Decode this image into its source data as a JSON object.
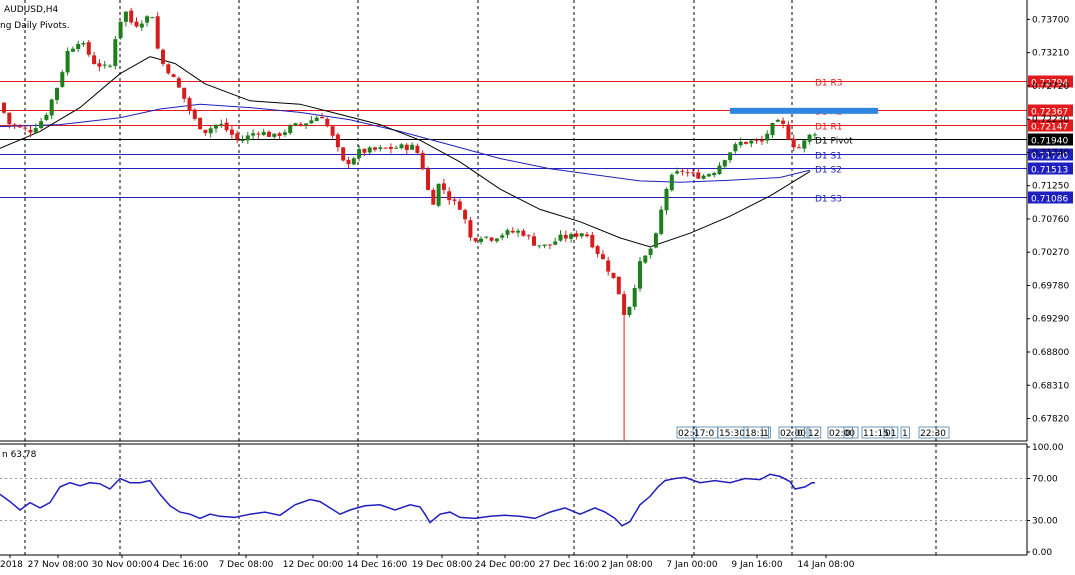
{
  "chart_data": {
    "type": "candlestick",
    "symbol_label": "AUDUSD,H4",
    "indicator_label": "ng Daily Pivots.",
    "price_axis": {
      "ylim": [
        0.67489,
        0.73985
      ],
      "tick_labels": [
        "0.73700",
        "0.73210",
        "0.72720",
        "0.72230",
        "0.71740",
        "0.71250",
        "0.70760",
        "0.70270",
        "0.69780",
        "0.69290",
        "0.68800",
        "0.68310",
        "0.67820"
      ]
    },
    "pivots": [
      {
        "label": "D1 R3",
        "price": "0.72794",
        "value": 0.72794,
        "color": "#e31a1c",
        "label_color": "#e31a1c"
      },
      {
        "label": "D1 R2",
        "price": "0.72367",
        "value": 0.72367,
        "color": "#e31a1c",
        "label_color": "#e31a1c"
      },
      {
        "label": "D1 R1",
        "price": "0.72147",
        "value": 0.72147,
        "color": "#e31a1c",
        "label_color": "#e31a1c"
      },
      {
        "label": "D1 Pivot",
        "price": "0.71940",
        "value": 0.7194,
        "color": "#000000",
        "label_color": "#000000"
      },
      {
        "label": "D1 S1",
        "price": "0.71720",
        "value": 0.7172,
        "color": "#1f1fbf",
        "label_color": "#1f1fbf"
      },
      {
        "label": "D1 S2",
        "price": "0.71513",
        "value": 0.71513,
        "color": "#1f1fbf",
        "label_color": "#1f1fbf"
      },
      {
        "label": "D1 S3",
        "price": "0.71086",
        "value": 0.71086,
        "color": "#1f1fbf",
        "label_color": "#1f1fbf"
      }
    ],
    "x_labels": [
      "2018",
      "27 Nov 08:00",
      "30 Nov 00:00",
      "4 Dec 16:00",
      "7 Dec 08:00",
      "12 Dec 00:00",
      "14 Dec 16:00",
      "19 Dec 08:00",
      "24 Dec 00:00",
      "27 Dec 16:00",
      "2 Jan 08:00",
      "7 Jan 00:00",
      "9 Jan 16:00",
      "14 Jan 08:00"
    ],
    "session_labels": [
      "02:",
      "17:0",
      "15:30",
      "18:1",
      "1",
      "02:00",
      "0",
      "12",
      "02:00",
      "0",
      "11:15",
      "01",
      "1",
      "22:30"
    ],
    "colors": {
      "bull": "#1e7e1e",
      "bear": "#d41e1e",
      "ma_black": "#000000",
      "ma_blue": "#1f1fbf",
      "rsi": "#1f1fbf",
      "highlight": "#2f86e0"
    },
    "price_anchors": [
      [
        0,
        0.7247
      ],
      [
        10,
        0.7216
      ],
      [
        30,
        0.7205
      ],
      [
        45,
        0.7225
      ],
      [
        60,
        0.7279
      ],
      [
        68,
        0.7322
      ],
      [
        80,
        0.734
      ],
      [
        95,
        0.7306
      ],
      [
        110,
        0.7296
      ],
      [
        118,
        0.736
      ],
      [
        126,
        0.7382
      ],
      [
        134,
        0.736
      ],
      [
        144,
        0.737
      ],
      [
        153,
        0.7377
      ],
      [
        160,
        0.7311
      ],
      [
        170,
        0.7293
      ],
      [
        182,
        0.7262
      ],
      [
        195,
        0.7222
      ],
      [
        205,
        0.7205
      ],
      [
        220,
        0.7217
      ],
      [
        240,
        0.719
      ],
      [
        258,
        0.7206
      ],
      [
        275,
        0.7197
      ],
      [
        292,
        0.7211
      ],
      [
        310,
        0.722
      ],
      [
        322,
        0.723
      ],
      [
        334,
        0.7194
      ],
      [
        345,
        0.7155
      ],
      [
        360,
        0.7175
      ],
      [
        380,
        0.7178
      ],
      [
        400,
        0.7182
      ],
      [
        416,
        0.7182
      ],
      [
        425,
        0.7145
      ],
      [
        432,
        0.7093
      ],
      [
        440,
        0.713
      ],
      [
        452,
        0.7102
      ],
      [
        462,
        0.7093
      ],
      [
        472,
        0.7043
      ],
      [
        480,
        0.7052
      ],
      [
        492,
        0.7048
      ],
      [
        505,
        0.7055
      ],
      [
        522,
        0.7058
      ],
      [
        535,
        0.704
      ],
      [
        548,
        0.7035
      ],
      [
        560,
        0.7048
      ],
      [
        572,
        0.705
      ],
      [
        585,
        0.7058
      ],
      [
        596,
        0.7032
      ],
      [
        606,
        0.701
      ],
      [
        614,
        0.6988
      ],
      [
        620,
        0.6965
      ],
      [
        626,
        0.693
      ],
      [
        632,
        0.6958
      ],
      [
        640,
        0.7008
      ],
      [
        650,
        0.7028
      ],
      [
        658,
        0.7055
      ],
      [
        665,
        0.7115
      ],
      [
        672,
        0.7136
      ],
      [
        682,
        0.7148
      ],
      [
        692,
        0.714
      ],
      [
        705,
        0.714
      ],
      [
        716,
        0.7148
      ],
      [
        728,
        0.7172
      ],
      [
        740,
        0.7188
      ],
      [
        752,
        0.719
      ],
      [
        762,
        0.7188
      ],
      [
        770,
        0.7208
      ],
      [
        777,
        0.7218
      ],
      [
        784,
        0.7213
      ],
      [
        792,
        0.7187
      ],
      [
        800,
        0.7181
      ],
      [
        810,
        0.7198
      ],
      [
        818,
        0.7207
      ]
    ],
    "ma_black": [
      [
        0,
        0.718
      ],
      [
        40,
        0.7205
      ],
      [
        80,
        0.724
      ],
      [
        120,
        0.729
      ],
      [
        150,
        0.7315
      ],
      [
        175,
        0.7305
      ],
      [
        205,
        0.7275
      ],
      [
        250,
        0.725
      ],
      [
        300,
        0.7245
      ],
      [
        340,
        0.723
      ],
      [
        380,
        0.7215
      ],
      [
        420,
        0.7192
      ],
      [
        460,
        0.716
      ],
      [
        500,
        0.712
      ],
      [
        540,
        0.709
      ],
      [
        580,
        0.7072
      ],
      [
        620,
        0.7048
      ],
      [
        650,
        0.7035
      ],
      [
        690,
        0.7055
      ],
      [
        730,
        0.708
      ],
      [
        770,
        0.711
      ],
      [
        810,
        0.7146
      ]
    ],
    "ma_blue": [
      [
        0,
        0.7212
      ],
      [
        60,
        0.7215
      ],
      [
        120,
        0.7225
      ],
      [
        160,
        0.7238
      ],
      [
        200,
        0.7245
      ],
      [
        250,
        0.724
      ],
      [
        300,
        0.7233
      ],
      [
        350,
        0.7222
      ],
      [
        400,
        0.7205
      ],
      [
        450,
        0.7185
      ],
      [
        500,
        0.7165
      ],
      [
        550,
        0.715
      ],
      [
        600,
        0.714
      ],
      [
        640,
        0.7132
      ],
      [
        680,
        0.713
      ],
      [
        730,
        0.7133
      ],
      [
        780,
        0.7137
      ],
      [
        810,
        0.7148
      ]
    ],
    "rsi": {
      "label": "n 63.78",
      "ylim": [
        0,
        100
      ],
      "tick_labels": [
        "100.00",
        "70.00",
        "30.00",
        "0.00"
      ],
      "levels": [
        70,
        30
      ],
      "points": [
        [
          0,
          55
        ],
        [
          10,
          48
        ],
        [
          20,
          40
        ],
        [
          30,
          47
        ],
        [
          40,
          42
        ],
        [
          50,
          47
        ],
        [
          60,
          62
        ],
        [
          70,
          66
        ],
        [
          80,
          63
        ],
        [
          90,
          66
        ],
        [
          100,
          65
        ],
        [
          110,
          60
        ],
        [
          120,
          70
        ],
        [
          130,
          66
        ],
        [
          140,
          66
        ],
        [
          150,
          68
        ],
        [
          160,
          55
        ],
        [
          170,
          44
        ],
        [
          180,
          38
        ],
        [
          190,
          36
        ],
        [
          200,
          32
        ],
        [
          210,
          36
        ],
        [
          220,
          34
        ],
        [
          235,
          33
        ],
        [
          250,
          36
        ],
        [
          265,
          38
        ],
        [
          280,
          35
        ],
        [
          295,
          45
        ],
        [
          310,
          50
        ],
        [
          320,
          48
        ],
        [
          330,
          42
        ],
        [
          340,
          36
        ],
        [
          350,
          40
        ],
        [
          365,
          44
        ],
        [
          380,
          45
        ],
        [
          395,
          40
        ],
        [
          410,
          45
        ],
        [
          420,
          43
        ],
        [
          425,
          36
        ],
        [
          430,
          28
        ],
        [
          440,
          36
        ],
        [
          450,
          38
        ],
        [
          460,
          33
        ],
        [
          475,
          32
        ],
        [
          490,
          34
        ],
        [
          505,
          35
        ],
        [
          520,
          34
        ],
        [
          535,
          32
        ],
        [
          550,
          38
        ],
        [
          565,
          42
        ],
        [
          580,
          36
        ],
        [
          595,
          42
        ],
        [
          605,
          38
        ],
        [
          615,
          32
        ],
        [
          622,
          25
        ],
        [
          630,
          29
        ],
        [
          640,
          45
        ],
        [
          650,
          53
        ],
        [
          658,
          62
        ],
        [
          665,
          68
        ],
        [
          675,
          70
        ],
        [
          685,
          71
        ],
        [
          700,
          66
        ],
        [
          715,
          68
        ],
        [
          730,
          66
        ],
        [
          745,
          70
        ],
        [
          760,
          69
        ],
        [
          770,
          74
        ],
        [
          780,
          72
        ],
        [
          790,
          67
        ],
        [
          795,
          60
        ],
        [
          805,
          62
        ],
        [
          812,
          66
        ],
        [
          815,
          66
        ]
      ]
    }
  }
}
